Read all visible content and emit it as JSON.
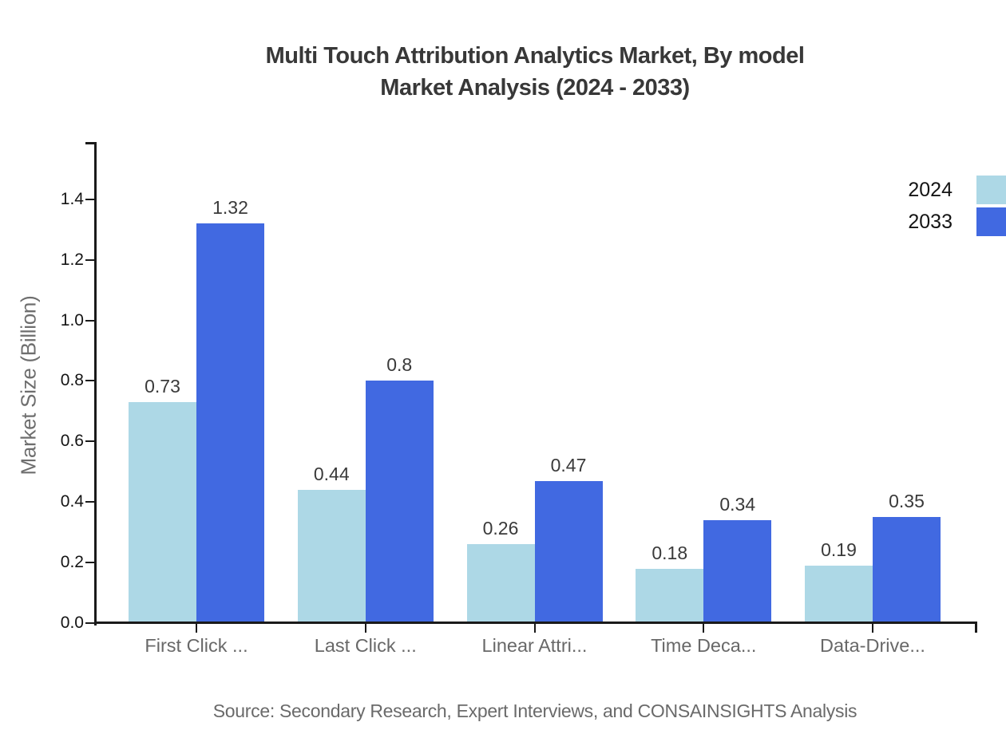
{
  "chart_data": {
    "type": "bar",
    "title": "Multi Touch Attribution Analytics Market, By model Market Analysis (2024 - 2033)",
    "title_line1": "Multi Touch Attribution Analytics Market, By model",
    "title_line2": "Market Analysis (2024 - 2033)",
    "categories": [
      "First Click ...",
      "Last Click ...",
      "Linear Attri...",
      "Time Deca...",
      "Data-Drive..."
    ],
    "series": [
      {
        "name": "2024",
        "color": "#ADD8E6",
        "values": [
          0.73,
          0.44,
          0.26,
          0.18,
          0.19
        ]
      },
      {
        "name": "2033",
        "color": "#4169E1",
        "values": [
          1.32,
          0.8,
          0.47,
          0.34,
          0.35
        ]
      }
    ],
    "xlabel": "",
    "ylabel": "Market Size (Billion)",
    "yticks": [
      0.0,
      0.2,
      0.4,
      0.6,
      0.8,
      1.0,
      1.2,
      1.4
    ],
    "ylim": [
      0,
      1.59
    ],
    "grid": false,
    "legend_position": "top-right",
    "bar_value_labels": true,
    "source": "Source: Secondary Research, Expert Interviews, and CONSAINSIGHTS Analysis",
    "colors": {
      "axis": "#1a1a1a",
      "tick_label": "#141414",
      "category_label": "#686868",
      "value_label": "#3A3A3A",
      "title": "#383838",
      "source": "#6A6A6A",
      "ylabel": "#6E6E6E",
      "background": "#ffffff"
    }
  }
}
